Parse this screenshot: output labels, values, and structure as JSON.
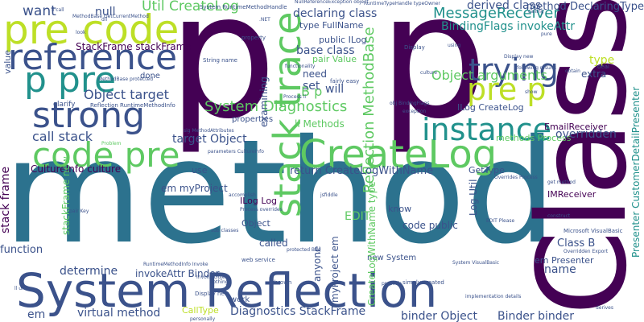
{
  "palette": {
    "purple": "#440154",
    "indigo": "#3b528b",
    "teal": "#21918c",
    "blue": "#2c728e",
    "green": "#5ec962",
    "lime": "#bddf26",
    "yellow": "#fde725",
    "lightgreen": "#7ad151"
  },
  "words": {
    "method": "method",
    "class": "Class",
    "p_left": "p",
    "p_right": "p",
    "system_reflection": "System Reflection",
    "pre_code": "pre code",
    "reference": "reference",
    "p_pre": "p pre",
    "strong": "strong",
    "code_pre": "code pre",
    "stack_trace": "stack trace",
    "createlog": "CreateLog",
    "trying": "trying",
    "pre_p": "pre p",
    "instance": "instance",
    "reflection_methodbase": "Reflection MethodBase",
    "system_diagnostics": "System Diagnostics",
    "object_arguments": "Object arguments",
    "messagereceiver": "MessageReceiver",
    "util_createlog": "Util CreateLog",
    "derived_class": "derived class",
    "method_declaringtype": "method DeclaringType",
    "bindingflags_invokeattr": "BindingFlags invokeAttr",
    "want": "want",
    "null": "null",
    "stackframe_stackframe": "StackFrame stackFrame",
    "object_target": "Object target",
    "base_class": "base class",
    "b_p": "B p",
    "set": "set",
    "will": "will",
    "need": "need",
    "declaring_class": "declaring class",
    "type_fullname": "type FullName",
    "public_ilog": "public ILog",
    "pair_value": "pair Value",
    "type": "type",
    "extra": "extra",
    "ilog_createlog": "ILog CreateLog",
    "methods_process": "methods Process",
    "call_stack": "call stack",
    "target_object": "target Object",
    "li_methods": "li Methods",
    "cultureinfo_culture": "CultureInfo culture",
    "return_createlogwithname": "return CreateLogWithName",
    "gettype": "GetType",
    "overridden": "overridden",
    "emailreceiver": "EmailReceiver",
    "imreceiver": "IMReceiver",
    "presenter_customerdetailpresenter": "Presenter CustomerDetailPresenter",
    "stack_frame": "stack frame",
    "em_myproject": "em myProject",
    "ilog_log": "ILog Log",
    "edit": "EDIT",
    "know": "know",
    "code_public": "code public",
    "class_b": "Class B",
    "em_presenter": "em Presenter",
    "name": "name",
    "binder_object": "binder Object",
    "binder_binder": "Binder binder",
    "determine": "determine",
    "invokeattr_binder": "invokeAttr Binder",
    "virtual_method": "virtual method",
    "diagnostics_stackframe": "Diagnostics StackFrame",
    "em": "em",
    "called": "called",
    "new_system": "new System",
    "function": "function",
    "object": "Object",
    "use": "use",
    "done": "done",
    "properties": "properties",
    "examining": "examining",
    "anyone": "anyone",
    "value": "value",
    "createlogwithname_type": "CreateLogWithName type",
    "myproject_em": "myProject em",
    "log_util": "Log Util",
    "stackframe_new": "stackFrame new",
    "calltype": "CallType",
    "work": "work",
    "clarify": "clarify",
    "reflection_runtimemethodinfo": "Reflection RuntimeMethodInfo",
    "systemruntimemethodhandle": "System RuntimeMethodHandle",
    "nullreferenceexception": "NullReferenceException object",
    "runtimetypehandle": "RuntimeTypeHandle typeOwner",
    "string_name": "String name",
    "property": "property",
    "display": "Display",
    "following_results": "following results",
    "obtain": "obtain",
    "deal": "deal",
    "fairly_easy": "fairly easy",
    "look": "look",
    "culture": "culture",
    "getcurrentmethod": "MethodBase GetCurrentMethod",
    "process_overrides": "Process overrides",
    "sub_classes": "sub classes",
    "web_service": "web service",
    "thrown": "thrown",
    "simply_created": "simply created",
    "implementation_details": "implementation details",
    "microsoft_visualbasic": "Microsoft VisualBasic",
    "overridden_export": "Overridden Export",
    "derives": "derives",
    "propinfo": "propInfo",
    "jsfiddle": "jsfiddle",
    "pair_key": "pair Key",
    "problem": "Problem",
    "accomplish": "accomplish",
    "invoke_object": "Invoke Object",
    "display_new": "Display new",
    "nothing": "Nothing",
    "runtimemethodinfo_invoke": "RuntimeMethodInfo Invoke",
    "personally": "personally",
    "edit_please": "EDIT Please",
    "system_visualbasic": "System VisualBasic",
    "ll_ul": "ll ul",
    "obj_bindingflags": "obj BindingFlags",
    "exception": "exception",
    "sig_methodattributes": "sig MethodAttributes",
    "parameters_cultureinfo": "parameters CultureInfo",
    "get_method": "get method",
    "construct": "construct",
    "protected_bag": "protected Bag",
    "calling": "calling",
    "pure": "pure",
    "show": "show",
    "using": "using",
    "net": ".NET",
    "dll": "dll",
    "li_call": "li call",
    "functionality": "functionality",
    "display_new2": "Display new",
    "methodbase_protected": "MethodBase protected",
    "overrides_process": "Overrides Process",
    "process_li": "Process li"
  }
}
